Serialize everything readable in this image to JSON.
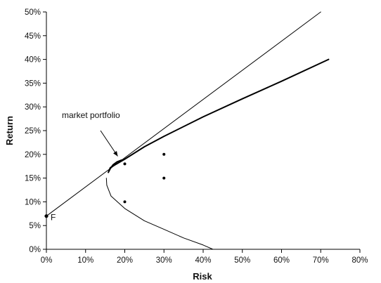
{
  "chart_data": {
    "type": "line",
    "xlabel": "Risk",
    "ylabel": "Return",
    "xlim": [
      0,
      80
    ],
    "ylim": [
      0,
      50
    ],
    "x_ticks": [
      0,
      10,
      20,
      30,
      40,
      50,
      60,
      70,
      80
    ],
    "y_ticks": [
      0,
      5,
      10,
      15,
      20,
      25,
      30,
      35,
      40,
      45,
      50
    ],
    "x_tick_labels": [
      "0%",
      "10%",
      "20%",
      "30%",
      "40%",
      "50%",
      "60%",
      "70%",
      "80%"
    ],
    "y_tick_labels": [
      "0%",
      "5%",
      "10%",
      "15%",
      "20%",
      "25%",
      "30%",
      "35%",
      "40%",
      "45%",
      "50%"
    ],
    "grid": false,
    "series": [
      {
        "role": "capital-market-line",
        "stroke_width": 1,
        "x": [
          0,
          70
        ],
        "y": [
          7,
          50
        ]
      },
      {
        "role": "efficient-frontier",
        "stroke_width": 2,
        "x": [
          19.2,
          18.0,
          17.0,
          16.3,
          15.8,
          16.3,
          20.0,
          25.0,
          30.0,
          40.0,
          50.0,
          60.0,
          72.0
        ],
        "y": [
          18.8,
          18.4,
          17.8,
          17.0,
          16.2,
          17.2,
          19.0,
          21.6,
          23.8,
          27.9,
          31.7,
          35.4,
          40.0
        ]
      },
      {
        "role": "minimum-variance-frontier-lower",
        "stroke_width": 1,
        "x": [
          15.3,
          15.4,
          16.5,
          20.0,
          25.0,
          30.0,
          35.0,
          40.0,
          42.5
        ],
        "y": [
          15.0,
          13.5,
          11.2,
          8.6,
          6.0,
          4.2,
          2.4,
          0.9,
          0.0
        ]
      }
    ],
    "points": [
      {
        "x": 20,
        "y": 18
      },
      {
        "x": 30,
        "y": 20
      },
      {
        "x": 30,
        "y": 15
      },
      {
        "x": 20,
        "y": 10
      },
      {
        "x": 0,
        "y": 7,
        "label": "F"
      }
    ],
    "annotations": [
      {
        "text": "market portfolio",
        "points_to": {
          "x": 18.2,
          "y": 19.6
        }
      }
    ]
  }
}
